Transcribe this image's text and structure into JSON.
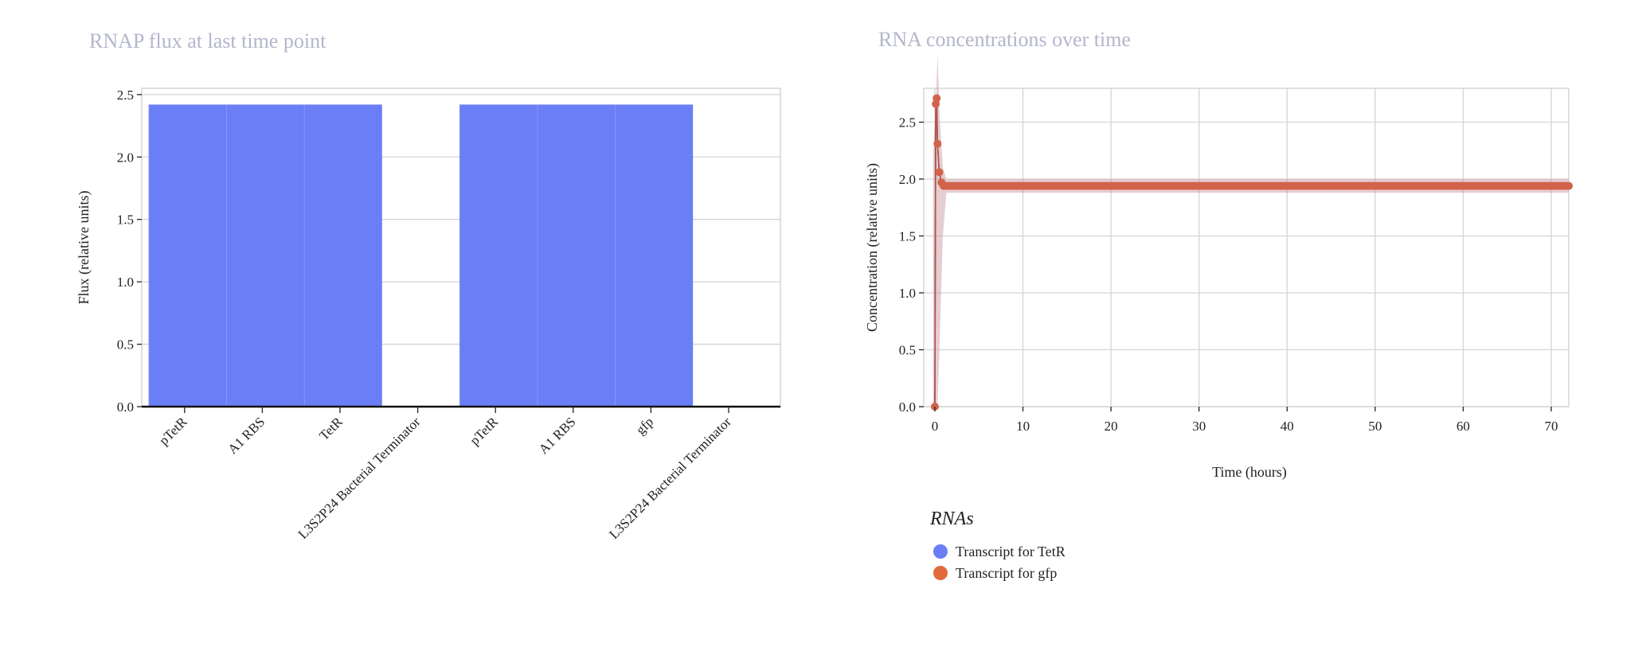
{
  "chart_data": [
    {
      "type": "bar",
      "title": "RNAP flux at last time point",
      "xlabel": "",
      "ylabel": "Flux (relative units)",
      "ylim": [
        0,
        2.55
      ],
      "yticks": [
        "0.0",
        "0.5",
        "1.0",
        "1.5",
        "2.0",
        "2.5"
      ],
      "categories": [
        "pTetR",
        "A1 RBS",
        "TetR",
        "L3S2P24 Bacterial Terminator",
        "pTetR",
        "A1 RBS",
        "gfp",
        "L3S2P24 Bacterial Terminator"
      ],
      "values": [
        2.42,
        2.42,
        2.42,
        0.0,
        2.42,
        2.42,
        2.42,
        0.0
      ],
      "color": "#6a7ef5",
      "grid": true
    },
    {
      "type": "line",
      "title": "RNA concentrations over time",
      "xlabel": "Time (hours)",
      "ylabel": "Concentration (relative units)",
      "xlim": [
        -0.5,
        72
      ],
      "ylim": [
        0,
        2.8
      ],
      "xticks": [
        "0",
        "10",
        "20",
        "30",
        "40",
        "50",
        "60",
        "70"
      ],
      "yticks": [
        "0.0",
        "0.5",
        "1.0",
        "1.5",
        "2.0",
        "2.5"
      ],
      "grid": true,
      "legend": {
        "title": "RNAs",
        "position": "bottom-left"
      },
      "series": [
        {
          "name": "Transcript for TetR",
          "color": "#6a7ef5",
          "x": [
            0,
            0.1,
            0.2,
            0.3,
            0.5,
            0.75,
            1,
            72
          ],
          "y": [
            0.0,
            2.66,
            2.71,
            2.31,
            2.06,
            1.97,
            1.94,
            1.94
          ]
        },
        {
          "name": "Transcript for gfp",
          "color": "#e06a3b",
          "x": [
            0,
            0.1,
            0.2,
            0.3,
            0.5,
            0.75,
            1,
            72
          ],
          "y": [
            0.0,
            2.66,
            2.71,
            2.31,
            2.06,
            1.97,
            1.94,
            1.94
          ]
        }
      ],
      "band": {
        "color": "#cfa4ad",
        "x": [
          -0.2,
          0.15,
          0.3,
          0.55,
          0.9,
          1.3,
          72
        ],
        "upper": [
          2.2,
          2.75,
          3.1,
          2.55,
          2.1,
          2.0,
          2.0
        ],
        "lower": [
          0.0,
          0.0,
          0.0,
          0.6,
          1.5,
          1.88,
          1.88
        ]
      },
      "marker_color": "#d2634a"
    }
  ]
}
